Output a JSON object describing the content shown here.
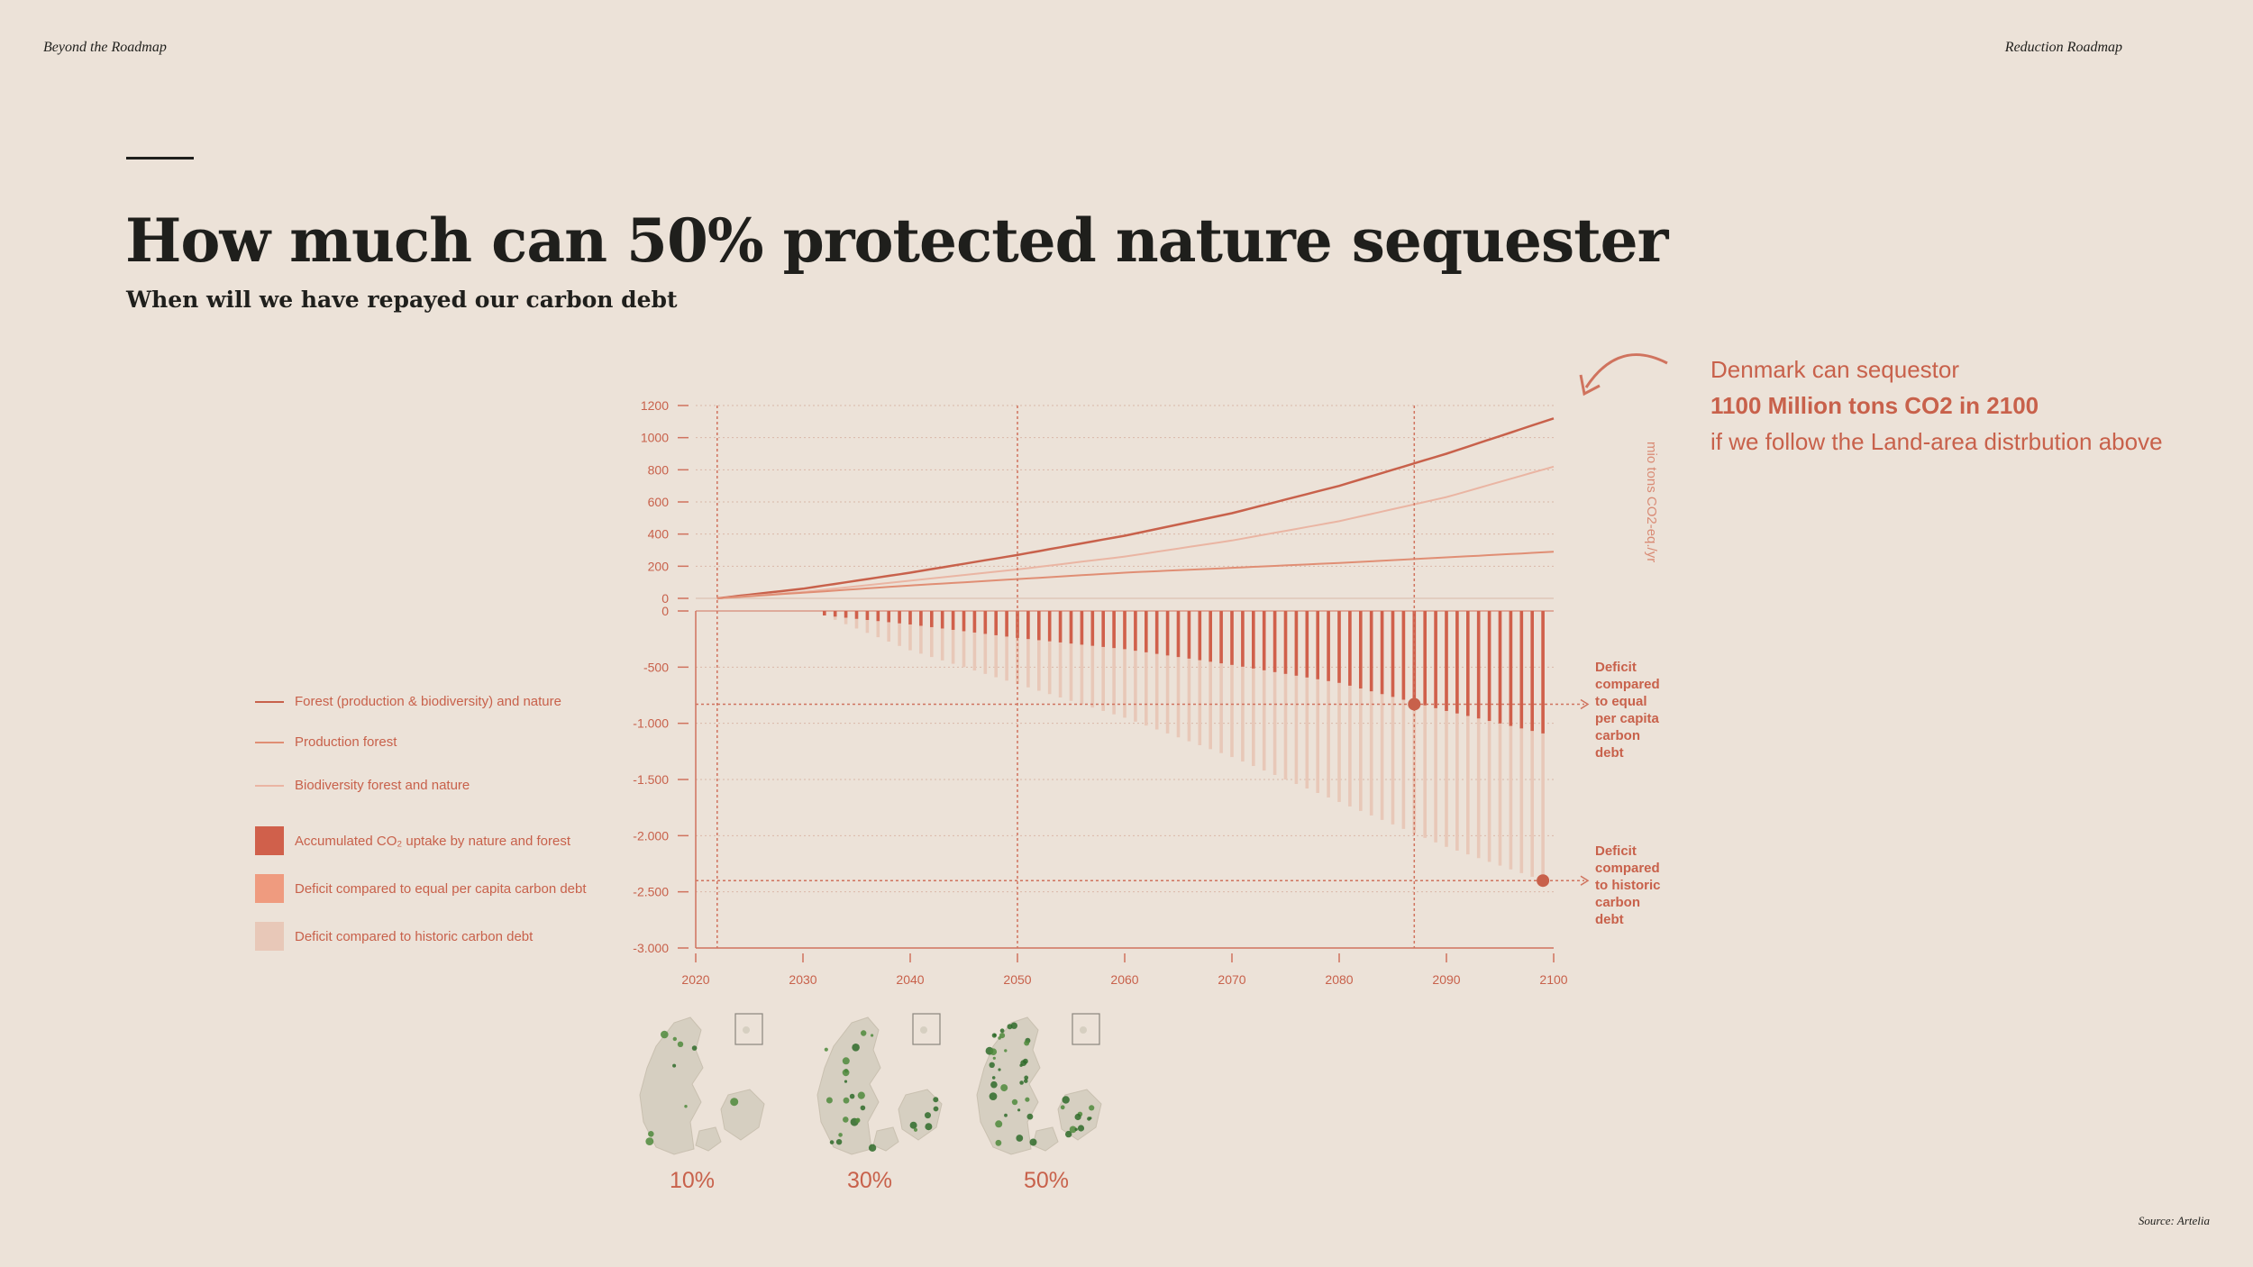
{
  "header": {
    "left": "Beyond the Roadmap",
    "right": "Reduction Roadmap"
  },
  "title": "How much can 50% protected nature sequester",
  "subtitle": "When will we have repayed our carbon debt",
  "callout": {
    "line1": "Denmark can sequestor",
    "line2": "1100 Million tons CO2 in 2100",
    "line3": "if we follow the Land-area distrbution above"
  },
  "legend": [
    {
      "label": "Forest (production & biodiversity) and nature",
      "kind": "line",
      "color": "#c8614b"
    },
    {
      "label": "Production forest",
      "kind": "line",
      "color": "#e08e74"
    },
    {
      "label": "Biodiversity forest and nature",
      "kind": "line",
      "color": "#eab5a3"
    },
    {
      "label": "Accumulated CO₂ uptake by nature and forest",
      "kind": "box",
      "color": "#d0604b"
    },
    {
      "label": "Deficit compared to equal per capita carbon debt",
      "kind": "box",
      "color": "#ef9b7f"
    },
    {
      "label": "Deficit compared to historic carbon debt",
      "kind": "box",
      "color": "#e8c8b8"
    }
  ],
  "annotations": {
    "equal_deficit": [
      "Deficit",
      "compared",
      "to equal",
      "per capita",
      "carbon",
      "debt"
    ],
    "historic_deficit": [
      "Deficit",
      "compared",
      "to historic",
      "carbon",
      "debt"
    ]
  },
  "maps": [
    {
      "label": "10%",
      "green_share": 0.1
    },
    {
      "label": "30%",
      "green_share": 0.3
    },
    {
      "label": "50%",
      "green_share": 0.5
    }
  ],
  "source": "Source: Artelia",
  "chart_data": {
    "type": "line+bar",
    "x_ticks": [
      2020,
      2030,
      2040,
      2050,
      2060,
      2070,
      2080,
      2090,
      2100
    ],
    "xlim": [
      2020,
      2100
    ],
    "top_panel": {
      "type": "line",
      "ylabel": "mio tons CO2-eq./yr",
      "ylim": [
        0,
        1200
      ],
      "y_ticks": [
        "1200",
        "1000",
        "800",
        "600",
        "400",
        "200",
        "0"
      ],
      "x": [
        2022,
        2030,
        2040,
        2050,
        2060,
        2070,
        2080,
        2090,
        2100
      ],
      "series": [
        {
          "name": "Forest (production & biodiversity) and nature",
          "color": "#c8614b",
          "values": [
            0,
            60,
            160,
            270,
            390,
            530,
            700,
            900,
            1120
          ]
        },
        {
          "name": "Biodiversity forest and nature",
          "color": "#eab5a3",
          "values": [
            0,
            40,
            110,
            180,
            260,
            360,
            480,
            630,
            820
          ]
        },
        {
          "name": "Production forest",
          "color": "#e08e74",
          "values": [
            0,
            35,
            80,
            120,
            160,
            190,
            220,
            255,
            290
          ]
        }
      ]
    },
    "bottom_panel": {
      "type": "bar",
      "ylim": [
        -3000,
        0
      ],
      "y_ticks": [
        "0",
        "-500",
        "-1.000",
        "-1.500",
        "-2.000",
        "-2.500",
        "-3.000"
      ],
      "bars_start_year": 2032,
      "bars_end_year": 2099,
      "equal_deficit_line": -830,
      "historic_deficit_line": -2400,
      "markers": [
        {
          "year": 2087,
          "value": -830
        },
        {
          "year": 2099,
          "value": -2400
        }
      ],
      "series": [
        {
          "name": "Accumulated CO₂ uptake by nature and forest",
          "color": "#d0604b",
          "x": [
            2032,
            2040,
            2050,
            2060,
            2070,
            2080,
            2090,
            2099
          ],
          "values": [
            -40,
            -120,
            -240,
            -340,
            -480,
            -640,
            -890,
            -1090
          ]
        },
        {
          "name": "Deficit compared to historic carbon debt",
          "color": "#e8c8b8",
          "x": [
            2032,
            2040,
            2050,
            2060,
            2070,
            2080,
            2090,
            2099
          ],
          "values": [
            -40,
            -350,
            -650,
            -950,
            -1300,
            -1700,
            -2100,
            -2400
          ]
        }
      ]
    },
    "reference_years": [
      2022,
      2050,
      2087
    ]
  }
}
